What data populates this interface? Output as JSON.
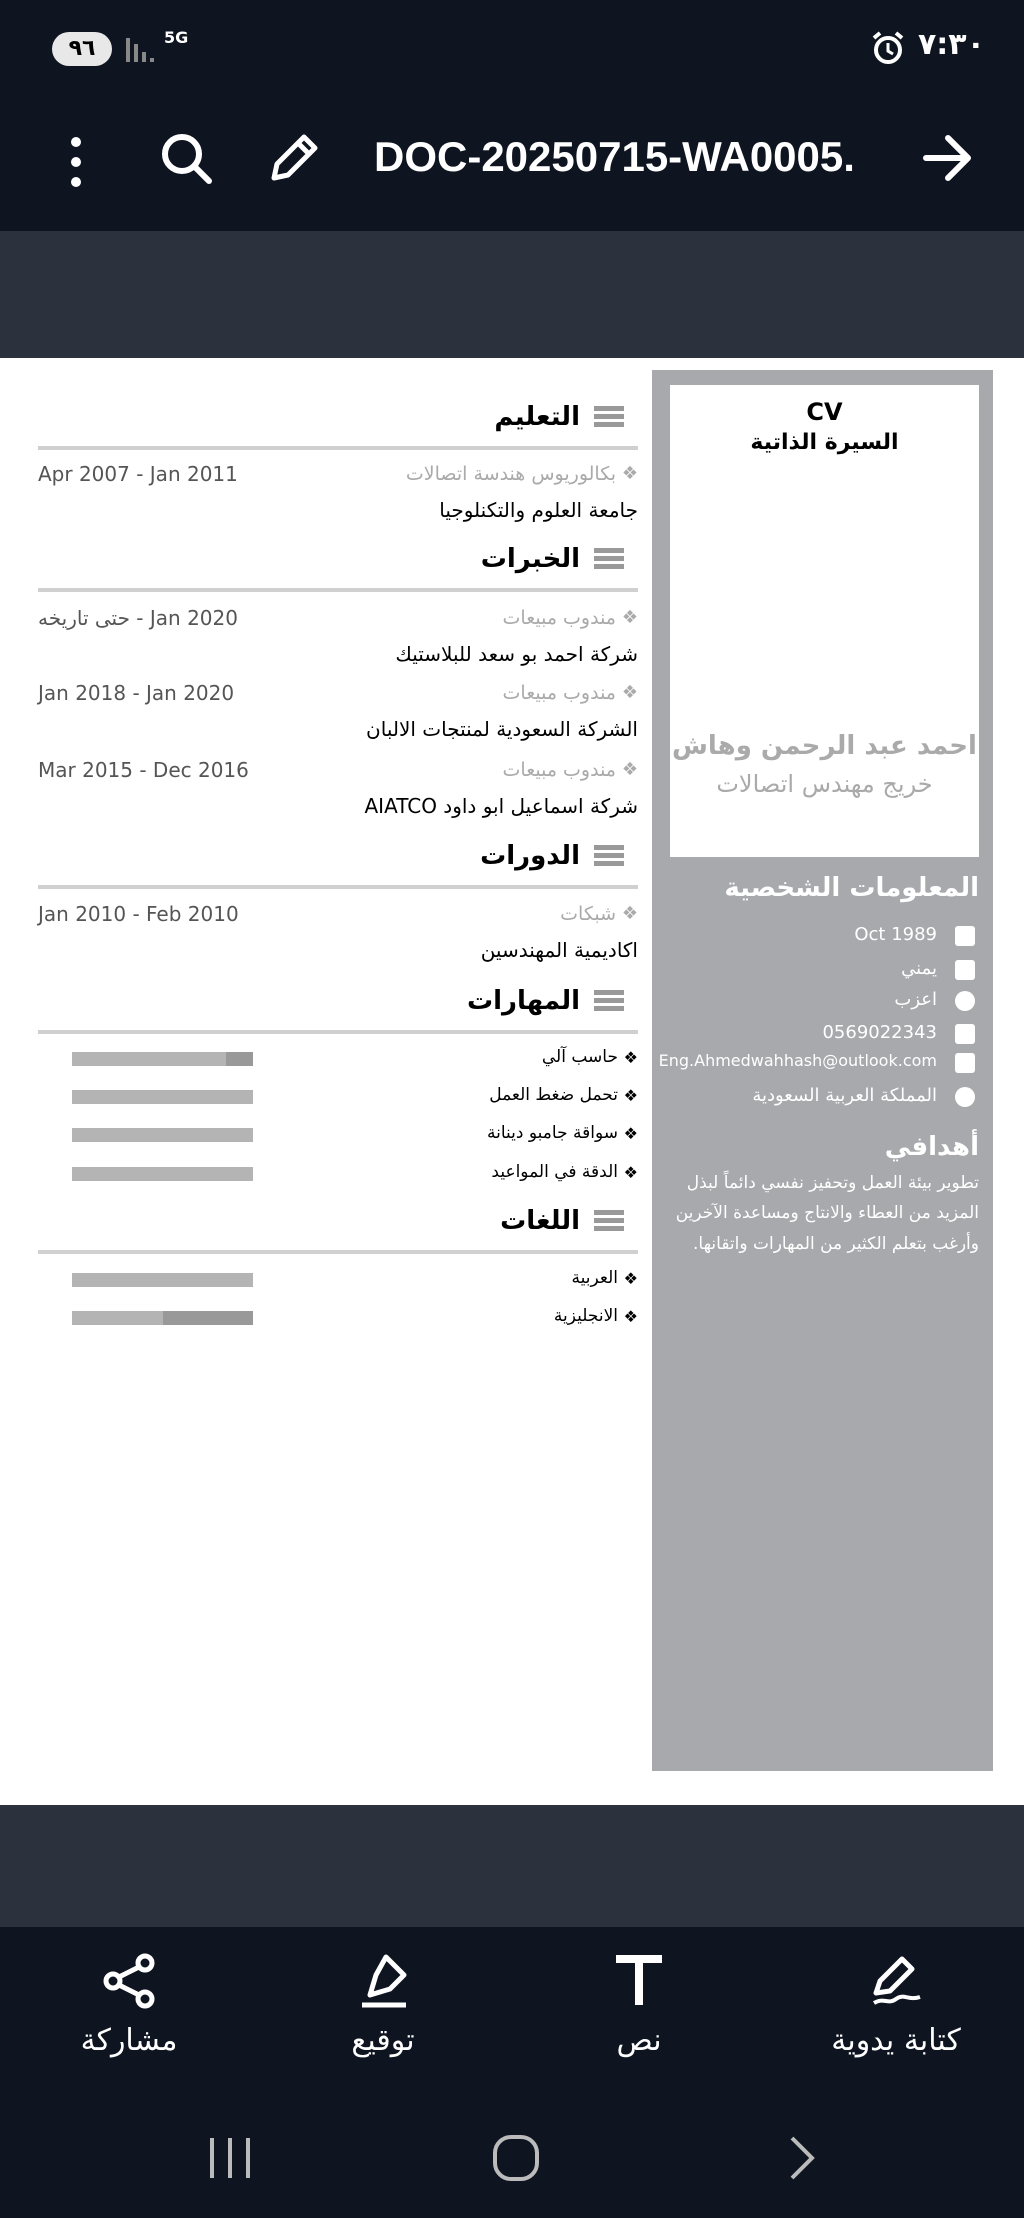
{
  "status_bar": {
    "battery": "٩٦",
    "network": "5G",
    "time": "٧:٣٠"
  },
  "app_bar": {
    "title": "DOC-20250715-WA0005."
  },
  "cv": {
    "header": {
      "label": "CV",
      "title": "السيرة الذاتية",
      "name": "احمد عبد الرحمن وهاش",
      "profession": "خريج مهندس اتصالات"
    },
    "personal_info": {
      "heading": "المعلومات الشخصية",
      "items": [
        "Oct 1989",
        "يمني",
        "اعزب",
        "0569022343",
        "Eng.Ahmedwahhash@outlook.com",
        "المملكة العربية السعودية"
      ]
    },
    "objectives": {
      "heading": "أهدافي",
      "lines": [
        "تطوير بيئة العمل وتحفيز نفسي دائماً لبذل",
        "المزيد من العطاء والانتاج ومساعدة الآخرين",
        "وأرغب بتعلم الكثير من المهارات واتقانها."
      ]
    },
    "education": {
      "heading": "التعليم",
      "entries": [
        {
          "title": "بكالوريوس هندسة اتصالات",
          "dates": "Apr 2007 - Jan 2011",
          "place": "جامعة العلوم والتكنلوجيا"
        }
      ]
    },
    "experience": {
      "heading": "الخبرات",
      "entries": [
        {
          "title": "مندوب مبيعات",
          "dates": "حتى تاريخه - Jan 2020",
          "place": "شركة احمد بو سعد للبلاستيك"
        },
        {
          "title": "مندوب مبيعات",
          "dates": "Jan 2018 - Jan 2020",
          "place": "الشركة السعودية لمنتجات الالبان"
        },
        {
          "title": "مندوب مبيعات",
          "dates": "Mar 2015 - Dec 2016",
          "place": "شركة اسماعيل ابو داود AIATCO"
        }
      ]
    },
    "courses": {
      "heading": "الدورات",
      "entries": [
        {
          "title": "شبكات",
          "dates": "Jan 2010 - Feb 2010",
          "place": "اكاديمية المهندسين"
        }
      ]
    },
    "skills": {
      "heading": "المهارات",
      "items": [
        {
          "name": "حاسب آلي",
          "level": 85
        },
        {
          "name": "تحمل ضغط العمل",
          "level": 100
        },
        {
          "name": "سواقة جامبو دينانة",
          "level": 100
        },
        {
          "name": "الدقة في المواعيد",
          "level": 100
        }
      ]
    },
    "languages": {
      "heading": "اللغات",
      "items": [
        {
          "name": "العربية",
          "level": 100
        },
        {
          "name": "الانجليزية",
          "level": 50
        }
      ]
    }
  },
  "bottom_toolbar": {
    "items": [
      "مشاركة",
      "توقيع",
      "نص",
      "كتابة يدوية"
    ]
  }
}
